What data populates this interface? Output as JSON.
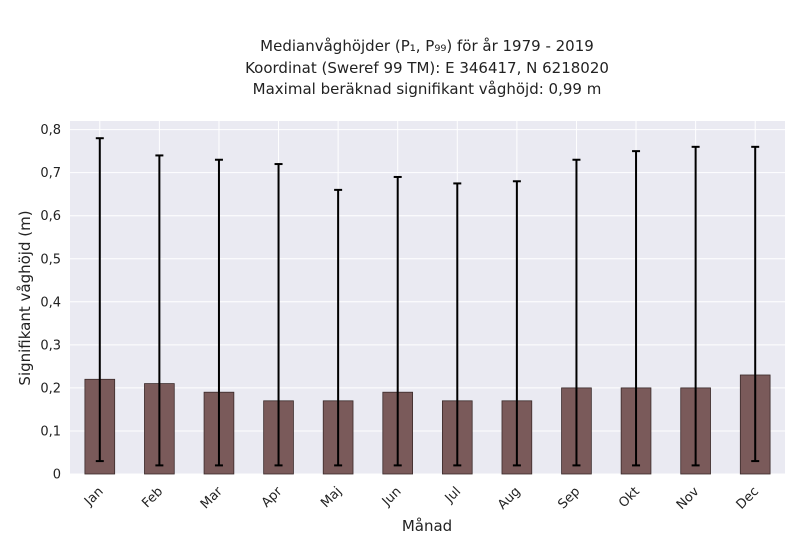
{
  "chart_data": {
    "type": "bar",
    "title_lines": [
      "Medianvåghöjder (P₁, P₉₉) för år 1979 - 2019",
      "Koordinat (Sweref 99 TM): E 346417, N 6218020",
      "Maximal beräknad signifikant våghöjd: 0,99 m"
    ],
    "xlabel": "Månad",
    "ylabel": "Signifikant våghöjd (m)",
    "categories": [
      "Jan",
      "Feb",
      "Mar",
      "Apr",
      "Maj",
      "Jun",
      "Jul",
      "Aug",
      "Sep",
      "Okt",
      "Nov",
      "Dec"
    ],
    "values": [
      0.22,
      0.21,
      0.19,
      0.17,
      0.17,
      0.19,
      0.17,
      0.17,
      0.2,
      0.2,
      0.2,
      0.23
    ],
    "err_low": [
      0.03,
      0.02,
      0.02,
      0.02,
      0.02,
      0.02,
      0.02,
      0.02,
      0.02,
      0.02,
      0.02,
      0.03
    ],
    "err_high": [
      0.78,
      0.74,
      0.73,
      0.72,
      0.66,
      0.69,
      0.675,
      0.68,
      0.73,
      0.75,
      0.76,
      0.76
    ],
    "ylim": [
      0,
      0.82
    ],
    "yticks": [
      0,
      0.1,
      0.2,
      0.3,
      0.4,
      0.5,
      0.6,
      0.7,
      0.8
    ],
    "ytick_labels": [
      "0",
      "0,1",
      "0,2",
      "0,3",
      "0,4",
      "0,5",
      "0,6",
      "0,7",
      "0,8"
    ],
    "grid": true,
    "colors": {
      "bar": "#7a5a5a",
      "bar_edge": "#3a2a2a",
      "error_bar": "#000000",
      "plot_background": "#eaeaf2",
      "grid": "#ffffff"
    }
  }
}
